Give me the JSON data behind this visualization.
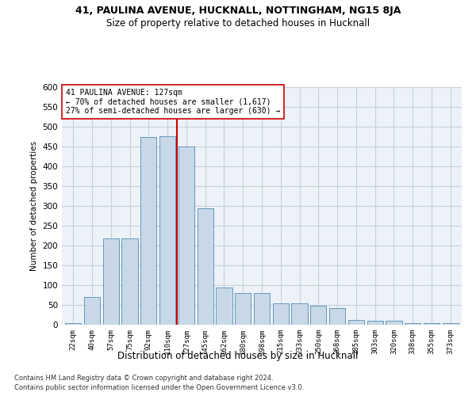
{
  "title1": "41, PAULINA AVENUE, HUCKNALL, NOTTINGHAM, NG15 8JA",
  "title2": "Size of property relative to detached houses in Hucknall",
  "xlabel": "Distribution of detached houses by size in Hucknall",
  "ylabel": "Number of detached properties",
  "footnote1": "Contains HM Land Registry data © Crown copyright and database right 2024.",
  "footnote2": "Contains public sector information licensed under the Open Government Licence v3.0.",
  "bar_color": "#c8d8e8",
  "bar_edge_color": "#6699bb",
  "grid_color": "#c8d0dc",
  "bg_color": "#edf1f8",
  "annotation_line1": "41 PAULINA AVENUE: 127sqm",
  "annotation_line2": "← 70% of detached houses are smaller (1,617)",
  "annotation_line3": "27% of semi-detached houses are larger (630) →",
  "vline_color": "#cc0000",
  "categories": [
    "22sqm",
    "40sqm",
    "57sqm",
    "75sqm",
    "92sqm",
    "110sqm",
    "127sqm",
    "145sqm",
    "162sqm",
    "180sqm",
    "198sqm",
    "215sqm",
    "233sqm",
    "250sqm",
    "268sqm",
    "285sqm",
    "303sqm",
    "320sqm",
    "338sqm",
    "355sqm",
    "373sqm"
  ],
  "values": [
    4,
    70,
    218,
    218,
    475,
    477,
    450,
    295,
    95,
    80,
    80,
    55,
    55,
    48,
    42,
    12,
    10,
    10,
    4,
    4,
    4
  ],
  "ylim": [
    0,
    600
  ],
  "yticks": [
    0,
    50,
    100,
    150,
    200,
    250,
    300,
    350,
    400,
    450,
    500,
    550,
    600
  ]
}
